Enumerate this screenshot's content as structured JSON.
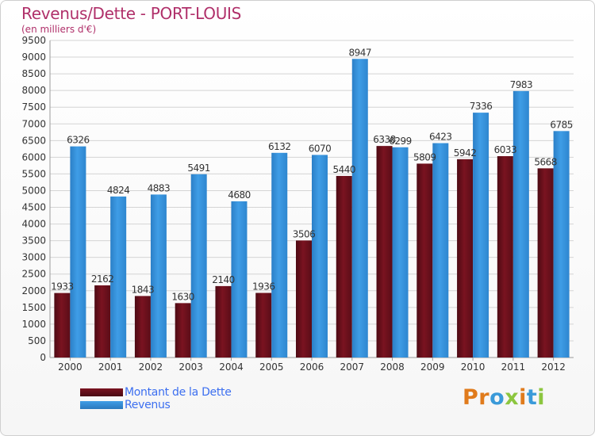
{
  "header": {
    "title": "Revenus/Dette - PORT-LOUIS",
    "subtitle": "(en milliers d'€)"
  },
  "legend": {
    "debt_label": "Montant de la Dette",
    "revenue_label": "Revenus"
  },
  "logo": {
    "letters": [
      "P",
      "r",
      "o",
      "x",
      "i",
      "t",
      "i"
    ],
    "colors": [
      "#e07b1c",
      "#e07b1c",
      "#3a9ad9",
      "#8cc63f",
      "#e07b1c",
      "#3a9ad9",
      "#8cc63f"
    ]
  },
  "colors": {
    "debt": "#7a1320",
    "revenue": "#3f9de6",
    "axis_text": "#333333",
    "grid": "#d4d4d4"
  },
  "chart_data": {
    "type": "bar",
    "title": "Revenus/Dette - PORT-LOUIS",
    "subtitle": "(en milliers d'€)",
    "categories": [
      "2000",
      "2001",
      "2002",
      "2003",
      "2004",
      "2005",
      "2006",
      "2007",
      "2008",
      "2009",
      "2010",
      "2011",
      "2012"
    ],
    "series": [
      {
        "name": "Montant de la Dette",
        "values": [
          1933,
          2162,
          1843,
          1630,
          2140,
          1936,
          3506,
          5440,
          6338,
          5809,
          5942,
          6033,
          5668
        ],
        "labels": [
          "1933",
          "2162",
          "1843",
          "1630",
          "2140",
          "1936",
          "3506",
          "5440",
          "6338",
          "5809",
          "5942",
          "6033",
          "5668"
        ]
      },
      {
        "name": "Revenus",
        "values": [
          6326,
          4824,
          4883,
          5491,
          4680,
          6132,
          6070,
          8947,
          6299,
          6423,
          7336,
          7983,
          6785
        ],
        "labels": [
          "6326",
          "4824",
          "4883",
          "5491",
          "4680",
          "6132",
          "6070",
          "8947",
          "6299",
          "6423",
          "7336",
          "7983",
          "6785"
        ]
      }
    ],
    "yticks": [
      "0",
      "500",
      "1000",
      "1500",
      "2000",
      "2500",
      "3000",
      "3500",
      "4000",
      "4500",
      "5000",
      "5500",
      "6000",
      "6500",
      "7000",
      "7500",
      "8000",
      "8500",
      "9000",
      "9500"
    ],
    "ylim": [
      0,
      9500
    ],
    "grid": true,
    "legend_position": "bottom-left"
  }
}
